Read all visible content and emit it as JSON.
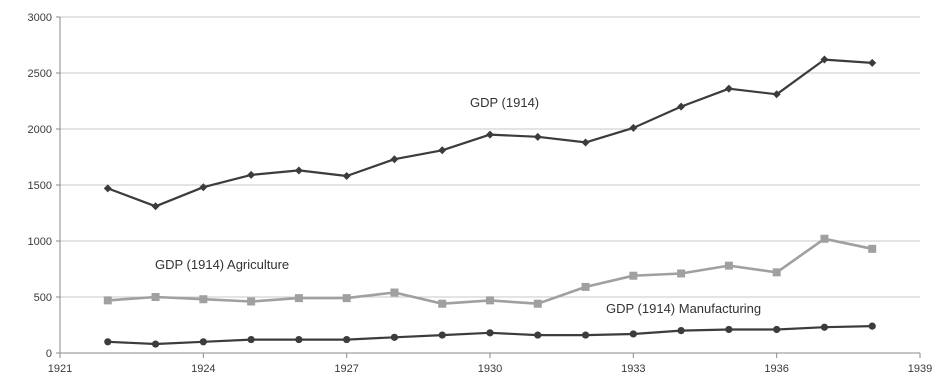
{
  "chart_data": {
    "type": "line",
    "title": "",
    "xlabel": "",
    "ylabel": "",
    "xlim": [
      1921,
      1939
    ],
    "ylim": [
      0,
      3000
    ],
    "x_ticks": [
      1921,
      1924,
      1927,
      1930,
      1933,
      1936,
      1939
    ],
    "y_ticks": [
      0,
      500,
      1000,
      1500,
      2000,
      2500,
      3000
    ],
    "grid": "horizontal",
    "legend": "none",
    "x": [
      1922,
      1923,
      1924,
      1925,
      1926,
      1927,
      1928,
      1929,
      1930,
      1931,
      1932,
      1933,
      1934,
      1935,
      1936,
      1937,
      1938
    ],
    "series": [
      {
        "name": "GDP (1914)",
        "color": "#3c3c3c",
        "marker": "diamond",
        "values": [
          1470,
          1310,
          1480,
          1590,
          1630,
          1580,
          1730,
          1810,
          1950,
          1930,
          1880,
          2010,
          2200,
          2360,
          2310,
          2620,
          2590
        ]
      },
      {
        "name": "GDP (1914) Agriculture",
        "color": "#a0a0a0",
        "marker": "square",
        "values": [
          470,
          500,
          480,
          460,
          490,
          490,
          540,
          440,
          470,
          440,
          590,
          690,
          710,
          780,
          720,
          1020,
          930
        ]
      },
      {
        "name": "GDP (1914) Manufacturing",
        "color": "#3c3c3c",
        "marker": "circle",
        "values": [
          100,
          80,
          100,
          120,
          120,
          120,
          140,
          160,
          180,
          160,
          160,
          170,
          200,
          210,
          210,
          230,
          240
        ]
      }
    ]
  }
}
